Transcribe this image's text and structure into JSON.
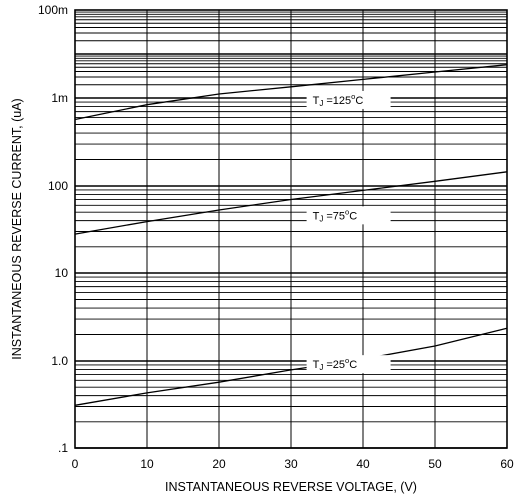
{
  "chart_data": {
    "type": "line",
    "title": "",
    "xlabel": "INSTANTANEOUS REVERSE VOLTAGE, (V)",
    "ylabel": "INSTANTANEOUS REVERSE CURRENT, (uA)",
    "x_scale": "linear",
    "y_scale": "log",
    "xlim": [
      0,
      60
    ],
    "ylim": [
      0.1,
      100000
    ],
    "x_ticks": [
      0,
      10,
      20,
      30,
      40,
      50,
      60
    ],
    "x_tick_labels": [
      "0",
      "10",
      "20",
      "30",
      "40",
      "50",
      "60"
    ],
    "y_ticks": [
      0.1,
      1,
      10,
      100,
      1000,
      100000
    ],
    "y_tick_labels": [
      ".1",
      "1.0",
      "10",
      "100",
      "1m",
      "100m"
    ],
    "grid": true,
    "series": [
      {
        "name": "TJ =125°C",
        "x": [
          0,
          10,
          20,
          30,
          40,
          50,
          60
        ],
        "y": [
          570,
          840,
          1230,
          1800,
          2650,
          3900,
          5700
        ]
      },
      {
        "name": "TJ =75°C",
        "x": [
          0,
          10,
          20,
          30,
          40,
          50,
          60
        ],
        "y": [
          28,
          39,
          53,
          70,
          89,
          113,
          145
        ]
      },
      {
        "name": "TJ =25°C",
        "x": [
          0,
          10,
          20,
          30,
          40,
          50,
          60
        ],
        "y": [
          0.31,
          0.43,
          0.57,
          0.79,
          1.05,
          1.48,
          2.35
        ]
      }
    ],
    "annotations": [
      {
        "series": 0,
        "label_prefix": "T",
        "label_sub": "J",
        "label_rest": " =125",
        "label_sup": "o",
        "label_unit": "C",
        "x": 33,
        "y": 950
      },
      {
        "series": 1,
        "label_prefix": "T",
        "label_sub": "J",
        "label_rest": " =75",
        "label_sup": "o",
        "label_unit": "C",
        "x": 33,
        "y": 46
      },
      {
        "series": 2,
        "label_prefix": "T",
        "label_sub": "J",
        "label_rest": " =25",
        "label_sup": "o",
        "label_unit": "C",
        "x": 33,
        "y": 0.92
      }
    ]
  }
}
